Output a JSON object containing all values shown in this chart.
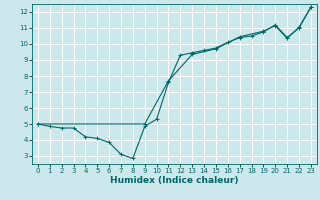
{
  "title": "",
  "xlabel": "Humidex (Indice chaleur)",
  "ylabel": "",
  "bg_color": "#cce8ec",
  "line_color": "#006666",
  "grid_color": "#ffffff",
  "xlim": [
    -0.5,
    23.5
  ],
  "ylim": [
    2.5,
    12.5
  ],
  "xticks": [
    0,
    1,
    2,
    3,
    4,
    5,
    6,
    7,
    8,
    9,
    10,
    11,
    12,
    13,
    14,
    15,
    16,
    17,
    18,
    19,
    20,
    21,
    22,
    23
  ],
  "yticks": [
    3,
    4,
    5,
    6,
    7,
    8,
    9,
    10,
    11,
    12
  ],
  "line1_x": [
    0,
    1,
    2,
    3,
    4,
    5,
    6,
    7,
    8,
    9,
    10,
    11,
    12,
    13,
    14,
    15,
    16,
    17,
    18,
    19,
    20,
    21,
    22,
    23
  ],
  "line1_y": [
    5.0,
    4.85,
    4.75,
    4.75,
    4.2,
    4.1,
    3.85,
    3.1,
    2.85,
    4.85,
    5.3,
    7.6,
    9.3,
    9.45,
    9.6,
    9.75,
    10.1,
    10.4,
    10.5,
    10.75,
    11.2,
    10.4,
    11.0,
    12.3
  ],
  "line2_x": [
    0,
    9,
    11,
    13,
    15,
    17,
    19,
    20,
    21,
    22,
    23
  ],
  "line2_y": [
    5.0,
    5.0,
    7.7,
    9.35,
    9.7,
    10.45,
    10.8,
    11.15,
    10.35,
    11.05,
    12.3
  ]
}
